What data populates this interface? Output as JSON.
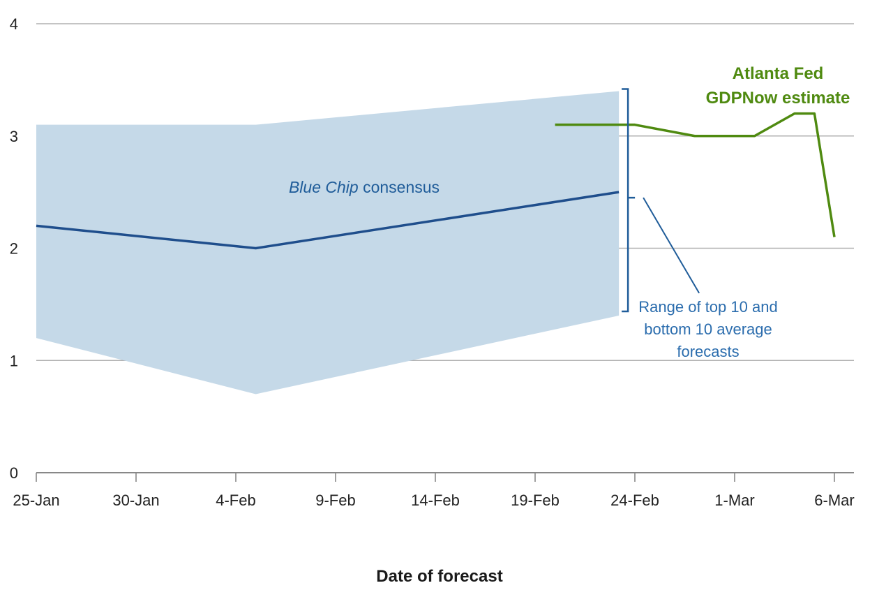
{
  "chart_data": {
    "type": "line",
    "title": "",
    "xlabel": "Date of forecast",
    "ylabel": "",
    "ylim": [
      0,
      4
    ],
    "yticks": [
      "0",
      "1",
      "2",
      "3",
      "4"
    ],
    "xlim_days": [
      0,
      40
    ],
    "x_ticks": [
      {
        "label": "25-Jan",
        "day": 0
      },
      {
        "label": "30-Jan",
        "day": 5
      },
      {
        "label": "4-Feb",
        "day": 10
      },
      {
        "label": "9-Feb",
        "day": 15
      },
      {
        "label": "14-Feb",
        "day": 20
      },
      {
        "label": "19-Feb",
        "day": 25
      },
      {
        "label": "24-Feb",
        "day": 30
      },
      {
        "label": "1-Mar",
        "day": 35
      },
      {
        "label": "6-Mar",
        "day": 40
      }
    ],
    "band": {
      "name": "Range of top 10 and bottom 10 average forecasts",
      "points": [
        {
          "day": 0,
          "low": 1.2,
          "high": 3.1
        },
        {
          "day": 11,
          "low": 0.7,
          "high": 3.1
        },
        {
          "day": 29.2,
          "low": 1.4,
          "high": 3.4
        }
      ],
      "color": "#c5d9e8"
    },
    "series": [
      {
        "name": "Blue Chip consensus",
        "color": "#1f4e8c",
        "points": [
          {
            "day": 0,
            "value": 2.2
          },
          {
            "day": 11,
            "value": 2.0
          },
          {
            "day": 29.2,
            "value": 2.5
          }
        ]
      },
      {
        "name": "Atlanta Fed GDPNow estimate",
        "color": "#4f8a10",
        "points": [
          {
            "day": 26,
            "value": 3.1
          },
          {
            "day": 30,
            "value": 3.1
          },
          {
            "day": 33,
            "value": 3.0
          },
          {
            "day": 36,
            "value": 3.0
          },
          {
            "day": 38,
            "value": 3.2
          },
          {
            "day": 39,
            "value": 3.2
          },
          {
            "day": 40,
            "value": 2.1
          }
        ]
      }
    ],
    "annotations": {
      "consensus_italic": "Blue Chip",
      "consensus_rest": " consensus",
      "range_lines": [
        "Range of top 10 and",
        "bottom 10 average",
        "forecasts"
      ],
      "gdpnow_lines": [
        "Atlanta Fed",
        "GDPNow estimate"
      ]
    },
    "colors": {
      "grid": "#b0b0b0",
      "axis": "#888888",
      "annotation_blue": "#1f5c99",
      "range_text": "#2a6cad",
      "gdpnow_text": "#4f8a10"
    }
  }
}
